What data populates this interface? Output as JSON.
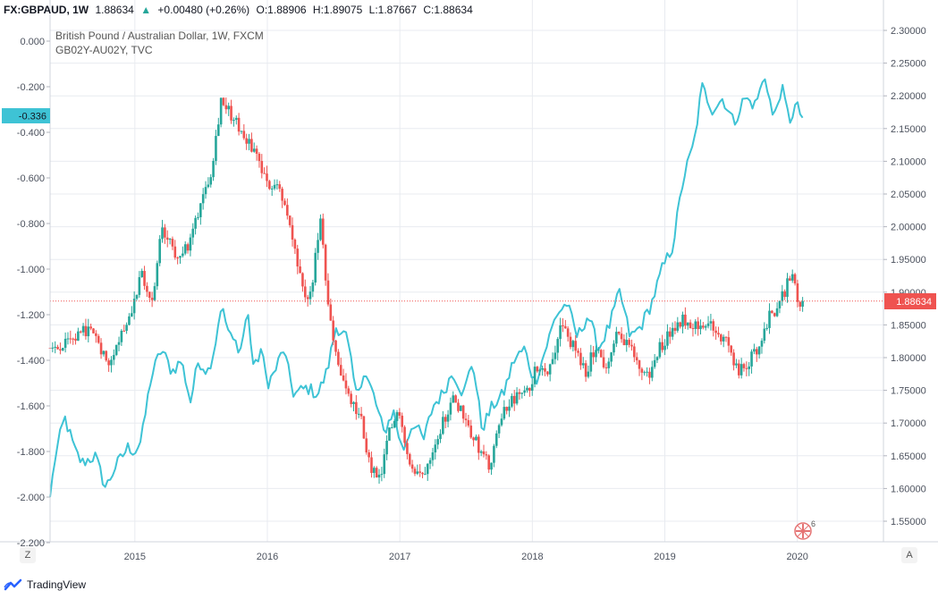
{
  "header": {
    "symbol": "FX:GBPAUD, 1W",
    "price": "1.88634",
    "change_arrow": "▲",
    "change": "+0.00480 (+0.26%)",
    "open": "O:1.88906",
    "high": "H:1.89075",
    "low": "L:1.87667",
    "close": "C:1.88634"
  },
  "legend": {
    "main": "British Pound / Australian Dollar, 1W, FXCM",
    "overlay": "GB02Y-AU02Y, TVC"
  },
  "axis_buttons": {
    "left": "Z",
    "right": "A"
  },
  "brand": "TradingView",
  "badge_count": "6",
  "colors": {
    "up": "#26a69a",
    "down": "#ef5350",
    "overlay": "#3ec3d5",
    "price_label": "#ef5350",
    "grid": "#e8ebf0"
  },
  "chart_data": {
    "type": "candlestick+line",
    "title": "British Pound / Australian Dollar, 1W, FXCM",
    "x_ticks": [
      "2015",
      "2016",
      "2017",
      "2018",
      "2019",
      "2020"
    ],
    "x_tick_years": [
      2015,
      2016,
      2017,
      2018,
      2019,
      2020
    ],
    "x_range": [
      2014.36,
      2020.65
    ],
    "left_axis": {
      "series": "GB02Y-AU02Y",
      "range": [
        -2.2,
        0.0
      ],
      "tick_labels": [
        "0.000",
        "-0.200",
        "-0.400",
        "-0.600",
        "-0.800",
        "-1.000",
        "-1.200",
        "-1.400",
        "-1.600",
        "-1.800",
        "-2.000",
        "-2.200"
      ],
      "tick_values": [
        0,
        -0.2,
        -0.4,
        -0.6,
        -0.8,
        -1.0,
        -1.2,
        -1.4,
        -1.6,
        -1.8,
        -2.0,
        -2.2
      ],
      "last_value_label": "-0.336",
      "last_value": -0.336
    },
    "right_axis": {
      "series": "GBPAUD",
      "range": [
        1.53,
        2.31
      ],
      "tick_labels": [
        "2.30000",
        "2.25000",
        "2.20000",
        "2.15000",
        "2.10000",
        "2.05000",
        "2.00000",
        "1.95000",
        "1.90000",
        "1.85000",
        "1.80000",
        "1.75000",
        "1.70000",
        "1.65000",
        "1.60000",
        "1.55000"
      ],
      "tick_values": [
        2.3,
        2.25,
        2.2,
        2.15,
        2.1,
        2.05,
        2.0,
        1.95,
        1.9,
        1.85,
        1.8,
        1.75,
        1.7,
        1.65,
        1.6,
        1.55
      ],
      "last_price_label": "1.88634",
      "last_price": 1.88634
    },
    "price_anchors": [
      [
        2014.36,
        1.815
      ],
      [
        2014.5,
        1.82
      ],
      [
        2014.65,
        1.845
      ],
      [
        2014.8,
        1.795
      ],
      [
        2014.95,
        1.86
      ],
      [
        2015.05,
        1.925
      ],
      [
        2015.13,
        1.88
      ],
      [
        2015.2,
        1.995
      ],
      [
        2015.3,
        1.96
      ],
      [
        2015.4,
        1.965
      ],
      [
        2015.5,
        2.04
      ],
      [
        2015.58,
        2.09
      ],
      [
        2015.65,
        2.195
      ],
      [
        2015.73,
        2.17
      ],
      [
        2015.82,
        2.14
      ],
      [
        2015.92,
        2.11
      ],
      [
        2016.0,
        2.06
      ],
      [
        2016.08,
        2.07
      ],
      [
        2016.18,
        1.99
      ],
      [
        2016.28,
        1.885
      ],
      [
        2016.33,
        1.9
      ],
      [
        2016.4,
        2.01
      ],
      [
        2016.46,
        1.87
      ],
      [
        2016.55,
        1.775
      ],
      [
        2016.62,
        1.735
      ],
      [
        2016.7,
        1.71
      ],
      [
        2016.78,
        1.63
      ],
      [
        2016.85,
        1.61
      ],
      [
        2016.92,
        1.685
      ],
      [
        2017.0,
        1.72
      ],
      [
        2017.08,
        1.63
      ],
      [
        2017.17,
        1.62
      ],
      [
        2017.25,
        1.665
      ],
      [
        2017.33,
        1.705
      ],
      [
        2017.4,
        1.735
      ],
      [
        2017.47,
        1.72
      ],
      [
        2017.55,
        1.68
      ],
      [
        2017.62,
        1.655
      ],
      [
        2017.68,
        1.63
      ],
      [
        2017.78,
        1.72
      ],
      [
        2017.88,
        1.74
      ],
      [
        2017.96,
        1.745
      ],
      [
        2018.04,
        1.79
      ],
      [
        2018.12,
        1.78
      ],
      [
        2018.22,
        1.85
      ],
      [
        2018.3,
        1.82
      ],
      [
        2018.4,
        1.775
      ],
      [
        2018.48,
        1.82
      ],
      [
        2018.56,
        1.78
      ],
      [
        2018.64,
        1.835
      ],
      [
        2018.72,
        1.825
      ],
      [
        2018.8,
        1.785
      ],
      [
        2018.88,
        1.77
      ],
      [
        2018.96,
        1.815
      ],
      [
        2019.04,
        1.84
      ],
      [
        2019.14,
        1.86
      ],
      [
        2019.22,
        1.85
      ],
      [
        2019.3,
        1.855
      ],
      [
        2019.38,
        1.84
      ],
      [
        2019.48,
        1.82
      ],
      [
        2019.55,
        1.775
      ],
      [
        2019.62,
        1.79
      ],
      [
        2019.7,
        1.815
      ],
      [
        2019.78,
        1.86
      ],
      [
        2019.86,
        1.88
      ],
      [
        2019.93,
        1.915
      ],
      [
        2019.96,
        1.93
      ],
      [
        2020.0,
        1.885
      ],
      [
        2020.04,
        1.88634
      ]
    ],
    "overlay_anchors": [
      [
        2014.36,
        -2.0
      ],
      [
        2014.4,
        -1.82
      ],
      [
        2014.47,
        -1.65
      ],
      [
        2014.55,
        -1.8
      ],
      [
        2014.6,
        -1.85
      ],
      [
        2014.7,
        -1.82
      ],
      [
        2014.78,
        -1.96
      ],
      [
        2014.85,
        -1.87
      ],
      [
        2014.95,
        -1.78
      ],
      [
        2015.0,
        -1.8
      ],
      [
        2015.05,
        -1.75
      ],
      [
        2015.12,
        -1.48
      ],
      [
        2015.2,
        -1.35
      ],
      [
        2015.28,
        -1.45
      ],
      [
        2015.35,
        -1.4
      ],
      [
        2015.42,
        -1.58
      ],
      [
        2015.48,
        -1.4
      ],
      [
        2015.55,
        -1.45
      ],
      [
        2015.6,
        -1.35
      ],
      [
        2015.65,
        -1.16
      ],
      [
        2015.72,
        -1.3
      ],
      [
        2015.8,
        -1.35
      ],
      [
        2015.85,
        -1.18
      ],
      [
        2015.9,
        -1.45
      ],
      [
        2015.95,
        -1.35
      ],
      [
        2016.0,
        -1.5
      ],
      [
        2016.05,
        -1.46
      ],
      [
        2016.12,
        -1.35
      ],
      [
        2016.2,
        -1.55
      ],
      [
        2016.3,
        -1.52
      ],
      [
        2016.38,
        -1.55
      ],
      [
        2016.45,
        -1.45
      ],
      [
        2016.52,
        -1.25
      ],
      [
        2016.6,
        -1.3
      ],
      [
        2016.67,
        -1.55
      ],
      [
        2016.73,
        -1.45
      ],
      [
        2016.8,
        -1.55
      ],
      [
        2016.88,
        -1.72
      ],
      [
        2016.95,
        -1.62
      ],
      [
        2017.02,
        -1.8
      ],
      [
        2017.1,
        -1.67
      ],
      [
        2017.18,
        -1.75
      ],
      [
        2017.25,
        -1.6
      ],
      [
        2017.32,
        -1.55
      ],
      [
        2017.4,
        -1.45
      ],
      [
        2017.48,
        -1.55
      ],
      [
        2017.55,
        -1.4
      ],
      [
        2017.62,
        -1.7
      ],
      [
        2017.7,
        -1.6
      ],
      [
        2017.78,
        -1.55
      ],
      [
        2017.86,
        -1.4
      ],
      [
        2017.94,
        -1.35
      ],
      [
        2018.02,
        -1.5
      ],
      [
        2018.1,
        -1.35
      ],
      [
        2018.18,
        -1.2
      ],
      [
        2018.26,
        -1.15
      ],
      [
        2018.34,
        -1.3
      ],
      [
        2018.42,
        -1.2
      ],
      [
        2018.5,
        -1.35
      ],
      [
        2018.58,
        -1.25
      ],
      [
        2018.66,
        -1.1
      ],
      [
        2018.74,
        -1.3
      ],
      [
        2018.82,
        -1.25
      ],
      [
        2018.9,
        -1.15
      ],
      [
        2018.98,
        -1.0
      ],
      [
        2019.06,
        -0.9
      ],
      [
        2019.14,
        -0.6
      ],
      [
        2019.22,
        -0.45
      ],
      [
        2019.28,
        -0.2
      ],
      [
        2019.36,
        -0.3
      ],
      [
        2019.44,
        -0.25
      ],
      [
        2019.52,
        -0.36
      ],
      [
        2019.6,
        -0.25
      ],
      [
        2019.68,
        -0.28
      ],
      [
        2019.76,
        -0.15
      ],
      [
        2019.82,
        -0.35
      ],
      [
        2019.88,
        -0.2
      ],
      [
        2019.94,
        -0.35
      ],
      [
        2019.99,
        -0.28
      ],
      [
        2020.04,
        -0.336
      ]
    ]
  }
}
